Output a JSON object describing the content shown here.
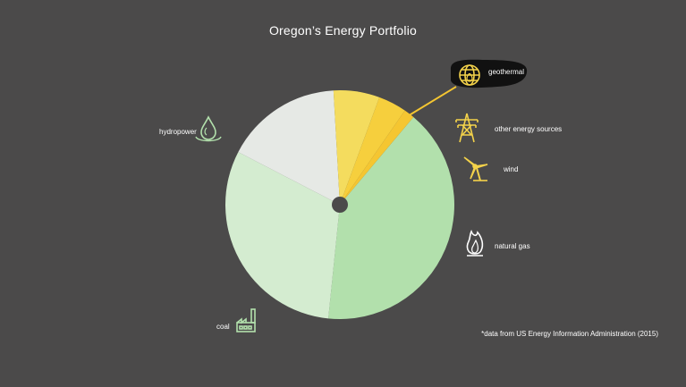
{
  "chart_data": {
    "type": "pie",
    "title": "Oregon’s  Energy Portfolio",
    "slices": [
      {
        "label": "hydropower",
        "value": 40.5,
        "color": "#b2e0ac",
        "icon": "water-drop-icon"
      },
      {
        "label": "coal",
        "value": 31.0,
        "color": "#d4ecd0",
        "icon": "factory-icon"
      },
      {
        "label": "natural gas",
        "value": 16.5,
        "color": "#e6e9e5",
        "icon": "flame-icon"
      },
      {
        "label": "wind",
        "value": 6.5,
        "color": "#f4dc5e",
        "icon": "wind-turbine-icon"
      },
      {
        "label": "other energy sources",
        "value": 4.0,
        "color": "#f6cf3d",
        "icon": "power-tower-icon"
      },
      {
        "label": "geothermal",
        "value": 1.5,
        "color": "#f5c631",
        "icon": "globe-icon"
      }
    ],
    "highlight": "geothermal",
    "highlight_color": "#f5c631",
    "hole_color": "#4b4a4a",
    "icon_color_warm": "#f3d24a",
    "icon_color_cool": "#b2e0ac",
    "icon_color_neutral": "#ffffff"
  },
  "footnote": "*data from US Energy Information Administration (2015)"
}
